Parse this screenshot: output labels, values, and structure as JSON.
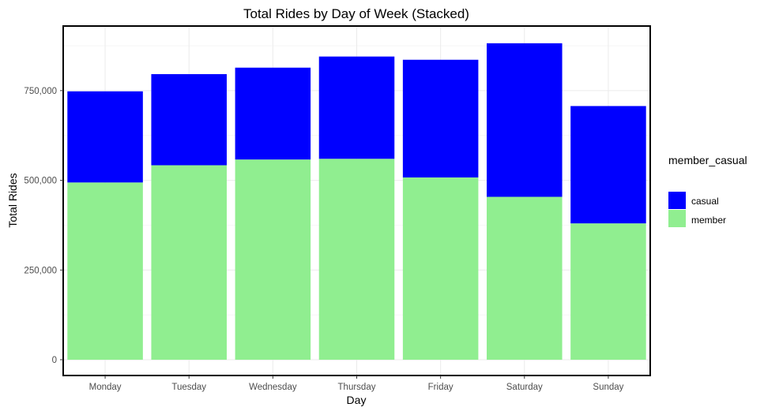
{
  "chart_data": {
    "type": "bar",
    "stacked": true,
    "title": "Total Rides by Day of Week (Stacked)",
    "xlabel": "Day",
    "ylabel": "Total Rides",
    "categories": [
      "Monday",
      "Tuesday",
      "Wednesday",
      "Thursday",
      "Friday",
      "Saturday",
      "Sunday"
    ],
    "series": [
      {
        "name": "member",
        "color": "#90ee90",
        "values": [
          494000,
          542000,
          558000,
          560000,
          508000,
          454000,
          380000
        ]
      },
      {
        "name": "casual",
        "color": "#0000ff",
        "values": [
          254000,
          254000,
          256000,
          285000,
          328000,
          428000,
          327000
        ]
      }
    ],
    "ylim": [
      0,
      930000
    ],
    "yticks": [
      0,
      250000,
      500000,
      750000
    ],
    "ytick_labels": [
      "0",
      "250,000",
      "500,000",
      "750,000"
    ],
    "grid": true,
    "legend": {
      "title": "member_casual",
      "placement": "right",
      "entries": [
        {
          "label": "casual",
          "color": "#0000ff"
        },
        {
          "label": "member",
          "color": "#90ee90"
        }
      ]
    }
  }
}
